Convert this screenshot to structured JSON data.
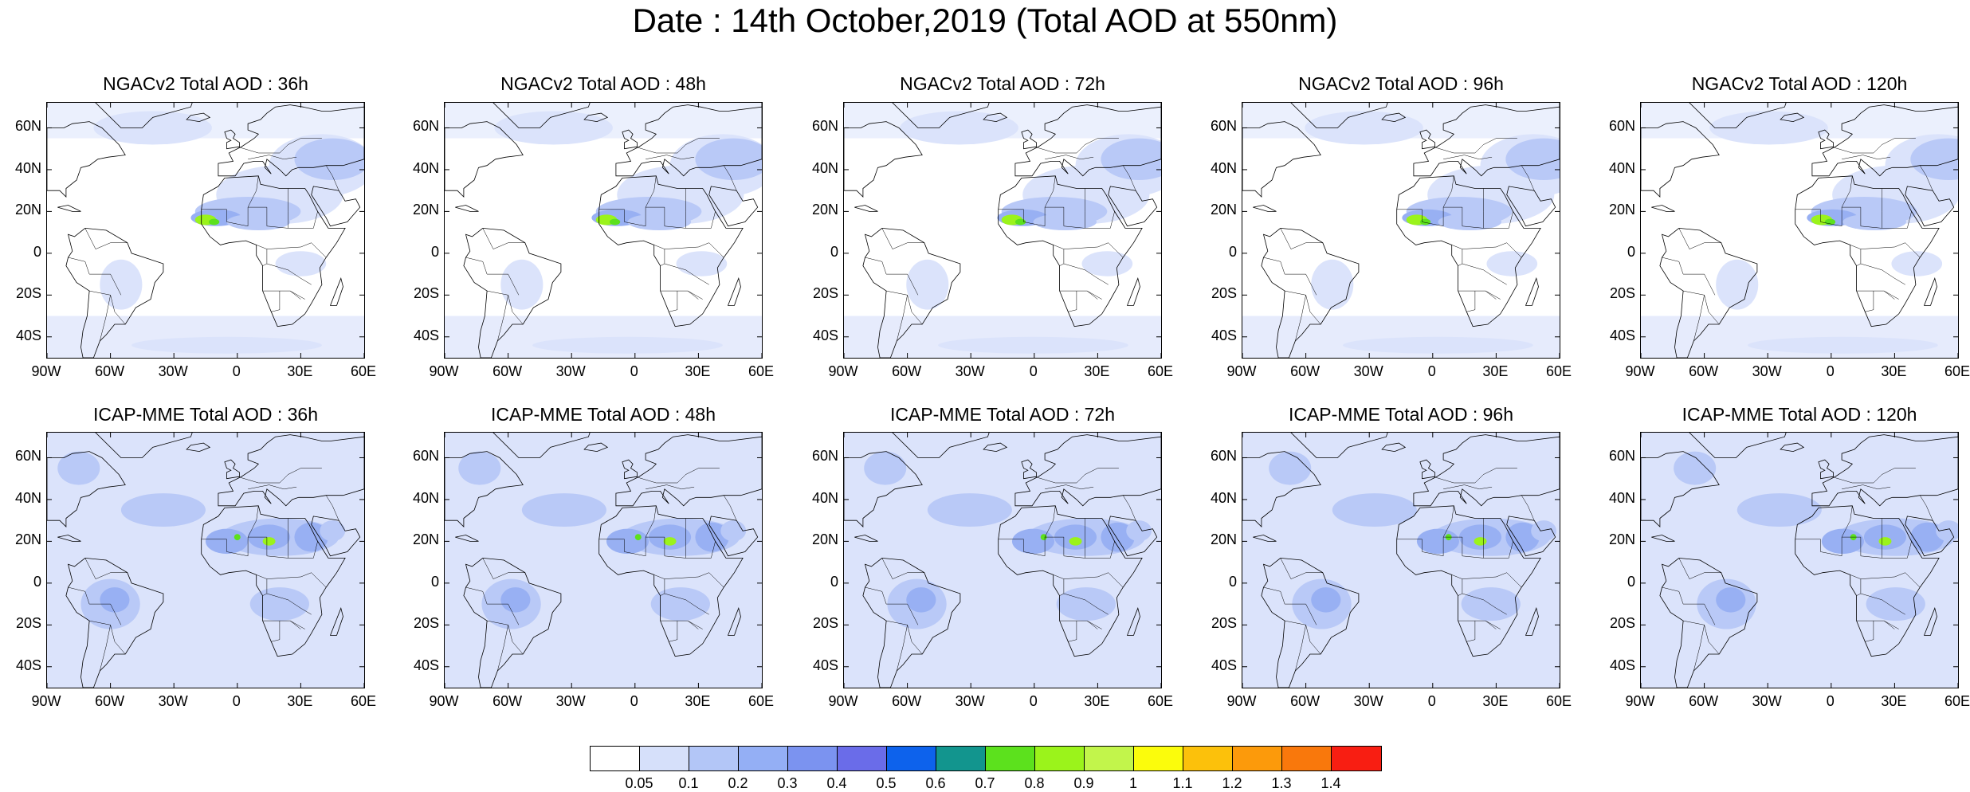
{
  "title": "Date : 14th October,2019 (Total AOD at 550nm)",
  "panels": [
    {
      "title": "NGACv2 Total AOD : 36h",
      "model": "NGAC",
      "lead": 36
    },
    {
      "title": "NGACv2 Total AOD : 48h",
      "model": "NGAC",
      "lead": 48
    },
    {
      "title": "NGACv2 Total AOD : 72h",
      "model": "NGAC",
      "lead": 72
    },
    {
      "title": "NGACv2 Total AOD : 96h",
      "model": "NGAC",
      "lead": 96
    },
    {
      "title": "NGACv2 Total AOD : 120h",
      "model": "NGAC",
      "lead": 120
    },
    {
      "title": "ICAP-MME Total AOD : 36h",
      "model": "ICAP",
      "lead": 36
    },
    {
      "title": "ICAP-MME Total AOD : 48h",
      "model": "ICAP",
      "lead": 48
    },
    {
      "title": "ICAP-MME Total AOD : 72h",
      "model": "ICAP",
      "lead": 72
    },
    {
      "title": "ICAP-MME Total AOD : 96h",
      "model": "ICAP",
      "lead": 96
    },
    {
      "title": "ICAP-MME Total AOD : 120h",
      "model": "ICAP",
      "lead": 120
    }
  ],
  "lat_labels": [
    "60N",
    "40N",
    "20N",
    "0",
    "20S",
    "40S"
  ],
  "lon_labels": [
    "90W",
    "60W",
    "30W",
    "0",
    "30E",
    "60E"
  ],
  "colorbar": {
    "labels": [
      "0.05",
      "0.1",
      "0.2",
      "0.3",
      "0.4",
      "0.5",
      "0.6",
      "0.7",
      "0.8",
      "0.9",
      "1",
      "1.1",
      "1.2",
      "1.3",
      "1.4"
    ],
    "colors": [
      "#ffffff",
      "#d6e0fa",
      "#b3c6f7",
      "#94aff5",
      "#7b93f0",
      "#6a6ce9",
      "#0d62ec",
      "#12958e",
      "#5ce11d",
      "#9bf31b",
      "#c2f54b",
      "#fbfc0c",
      "#fcc10b",
      "#fc9a0b",
      "#f9780c",
      "#f81e12"
    ]
  },
  "map_colors": {
    "background": "#ffffff",
    "level1": "#dbe3fb",
    "level2": "#b9c9f7",
    "level3": "#98b0f3",
    "level4": "#7f8ff0",
    "dust_core": "#9bf31b",
    "dust_hot": "#5ce11d"
  }
}
